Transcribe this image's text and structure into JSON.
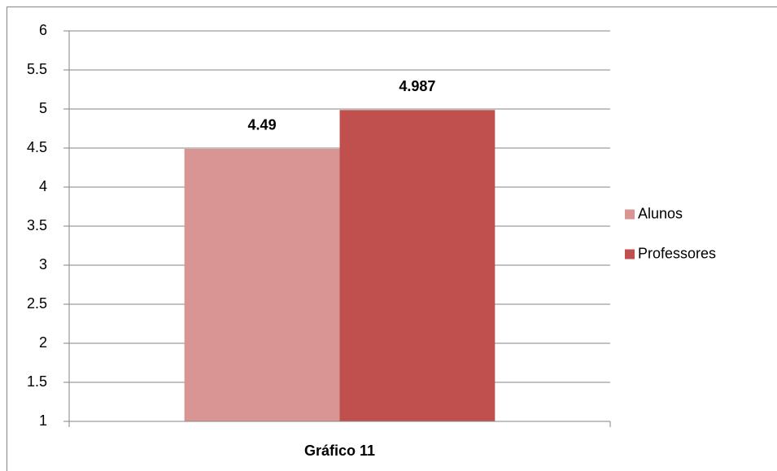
{
  "chart_data": {
    "type": "bar",
    "categories": [
      "Gráfico 11"
    ],
    "series": [
      {
        "name": "Alunos",
        "color": "#d99594",
        "values": [
          4.49
        ]
      },
      {
        "name": "Professores",
        "color": "#c0504d",
        "values": [
          4.987
        ]
      }
    ],
    "ylim": [
      1,
      6
    ],
    "yticks": [
      1,
      1.5,
      2,
      2.5,
      3,
      3.5,
      4,
      4.5,
      5,
      5.5,
      6
    ],
    "grid": true,
    "legend": "right"
  }
}
